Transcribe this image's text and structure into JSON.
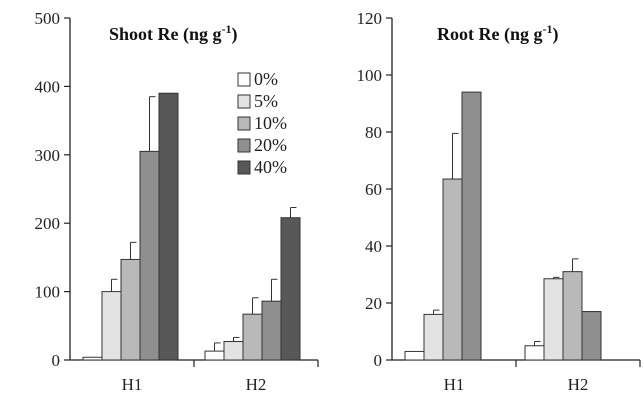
{
  "series_colors": [
    "#ffffff",
    "#e3e3e3",
    "#b9b9b9",
    "#8f8f8f",
    "#585858"
  ],
  "chart_data": [
    {
      "type": "bar",
      "title": "Shoot Re (ng g",
      "title_sup": "-1",
      "title_tail": ")",
      "categories": [
        "H1",
        "H2"
      ],
      "ylim": [
        0,
        500
      ],
      "yticks": [
        "0",
        "100",
        "200",
        "300",
        "400",
        "500"
      ],
      "legend_position": "top-right",
      "series": [
        {
          "name": "0%",
          "values": [
            4,
            13
          ],
          "errors": [
            0,
            12
          ]
        },
        {
          "name": "5%",
          "values": [
            100,
            27
          ],
          "errors": [
            18,
            6
          ]
        },
        {
          "name": "10%",
          "values": [
            147,
            67
          ],
          "errors": [
            25,
            24
          ]
        },
        {
          "name": "20%",
          "values": [
            305,
            86
          ],
          "errors": [
            80,
            32
          ]
        },
        {
          "name": "40%",
          "values": [
            390,
            208
          ],
          "errors": [
            0,
            15
          ]
        }
      ]
    },
    {
      "type": "bar",
      "title": "Root Re (ng g",
      "title_sup": "-1",
      "title_tail": ")",
      "categories": [
        "H1",
        "H2"
      ],
      "ylim": [
        0,
        120
      ],
      "yticks": [
        "0",
        "20",
        "40",
        "60",
        "80",
        "100",
        "120"
      ],
      "series": [
        {
          "name": "0%",
          "values": [
            3,
            5
          ],
          "errors": [
            0,
            1.5
          ]
        },
        {
          "name": "5%",
          "values": [
            16,
            28.5
          ],
          "errors": [
            1.5,
            0.5
          ]
        },
        {
          "name": "10%",
          "values": [
            63.5,
            31
          ],
          "errors": [
            16,
            4.5
          ]
        },
        {
          "name": "20%",
          "values": [
            94,
            17
          ],
          "errors": [
            0,
            0
          ]
        }
      ]
    }
  ]
}
